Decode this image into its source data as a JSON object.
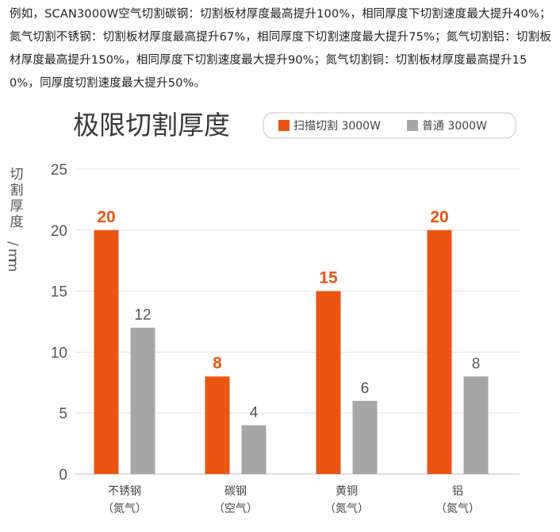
{
  "intro_text": "例如，SCAN3000W空气切割碳钢：切割板材厚度最高提升100%，相同厚度下切割速度最大提升40%；氮气切割不锈钢：切割板材厚度最高提升67%，相同厚度下切割速度最大提升75%；氮气切割铝：切割板材厚度最高提升150%，相同厚度下切割速度最大提升90%；氮气切割铜：切割板材厚度最高提升150%，同厚度切割速度最大提升50%。",
  "chart_data": {
    "type": "bar",
    "title": "极限切割厚度",
    "ylabel": "切割厚度/mm",
    "xlabel": "",
    "ylim": [
      0,
      25
    ],
    "yticks": [
      0,
      5,
      10,
      15,
      20,
      25
    ],
    "grid": true,
    "legend_position": "top-right",
    "categories": [
      {
        "material": "不锈钢",
        "gas": "（氮气）"
      },
      {
        "material": "碳钢",
        "gas": "（空气）"
      },
      {
        "material": "黄铜",
        "gas": "（氮气）"
      },
      {
        "material": "铝",
        "gas": "（氮气）"
      }
    ],
    "series": [
      {
        "name": "扫描切割 3000W",
        "color": "#ea5514",
        "values": [
          20,
          8,
          15,
          20
        ]
      },
      {
        "name": "普通 3000W",
        "color": "#a6a6a6",
        "values": [
          12,
          4,
          6,
          8
        ]
      }
    ]
  }
}
